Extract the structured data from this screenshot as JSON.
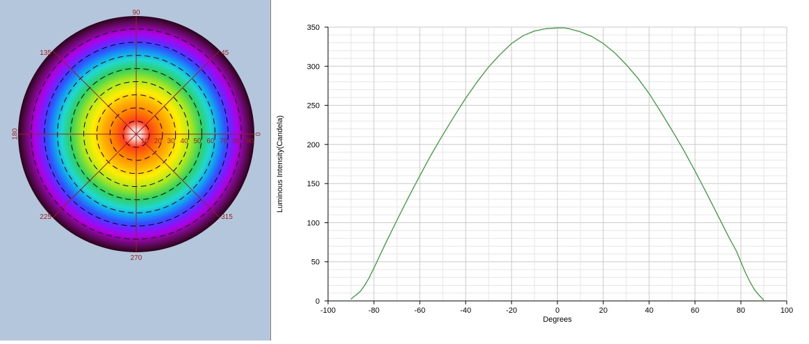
{
  "colors": {
    "polar_background": "#b4c6dc",
    "polar_axis": "#9a1f1f",
    "polar_label": "#9a1f1f",
    "polar_ring_dash": "#000000",
    "line_color": "#3a9a3a",
    "grid_color": "#cfcfcf",
    "axis_color": "#000000"
  },
  "chart_data": [
    {
      "type": "heatmap",
      "subtype": "polar-intensity-map",
      "angle_labels": [
        "90",
        "45",
        "0",
        "315",
        "270",
        "225",
        "180",
        "135"
      ],
      "angle_values": [
        90,
        45,
        0,
        315,
        270,
        225,
        180,
        135
      ],
      "radial_labels": [
        "10",
        "20",
        "30",
        "40",
        "50",
        "60",
        "70",
        "80",
        "90"
      ],
      "radial_values": [
        10,
        20,
        30,
        40,
        50,
        60,
        70,
        80,
        90
      ],
      "rlim": [
        0,
        90
      ],
      "dashed_rings": [
        10,
        20,
        30,
        40,
        50,
        60,
        70,
        80
      ],
      "color_bands": [
        {
          "r": 0,
          "color": "#ffffff"
        },
        {
          "r": 4,
          "color": "#ffd6d0"
        },
        {
          "r": 10,
          "color": "#ff3a1a"
        },
        {
          "r": 17,
          "color": "#ff7a00"
        },
        {
          "r": 25,
          "color": "#ffb000"
        },
        {
          "r": 33,
          "color": "#ffee00"
        },
        {
          "r": 42,
          "color": "#a8e820"
        },
        {
          "r": 50,
          "color": "#2fd060"
        },
        {
          "r": 57,
          "color": "#20d8d0"
        },
        {
          "r": 62,
          "color": "#10a8f0"
        },
        {
          "r": 68,
          "color": "#3050ff"
        },
        {
          "r": 73,
          "color": "#7a1cff"
        },
        {
          "r": 78,
          "color": "#b000e0"
        },
        {
          "r": 84,
          "color": "#6a0a6a"
        },
        {
          "r": 90,
          "color": "#2a0418"
        }
      ]
    },
    {
      "type": "line",
      "xlabel": "Degrees",
      "ylabel": "Luminous Intensity(Candela)",
      "xlim": [
        -100,
        100
      ],
      "ylim": [
        0,
        350
      ],
      "xticks": [
        -100,
        -80,
        -60,
        -40,
        -20,
        0,
        20,
        40,
        60,
        80,
        100
      ],
      "yticks": [
        0,
        50,
        100,
        150,
        200,
        250,
        300,
        350
      ],
      "grid": true,
      "legend": "none",
      "series": [
        {
          "x": [
            -90,
            -89,
            -88,
            -86,
            -84,
            -82,
            -80,
            -75,
            -70,
            -65,
            -60,
            -55,
            -50,
            -45,
            -40,
            -35,
            -30,
            -25,
            -20,
            -15,
            -10,
            -5,
            0,
            3,
            5,
            10,
            15,
            20,
            25,
            30,
            35,
            40,
            45,
            50,
            55,
            60,
            65,
            70,
            75,
            78,
            80,
            82,
            84,
            86,
            88,
            89,
            90
          ],
          "y": [
            2,
            5,
            7,
            12,
            20,
            30,
            42,
            73,
            103,
            132,
            160,
            187,
            212,
            236,
            259,
            280,
            299,
            315,
            329,
            339,
            345,
            348,
            349,
            349,
            348,
            344,
            338,
            329,
            317,
            302,
            285,
            265,
            242,
            218,
            193,
            166,
            138,
            109,
            80,
            64,
            50,
            36,
            24,
            14,
            7,
            4,
            1
          ]
        }
      ]
    }
  ]
}
